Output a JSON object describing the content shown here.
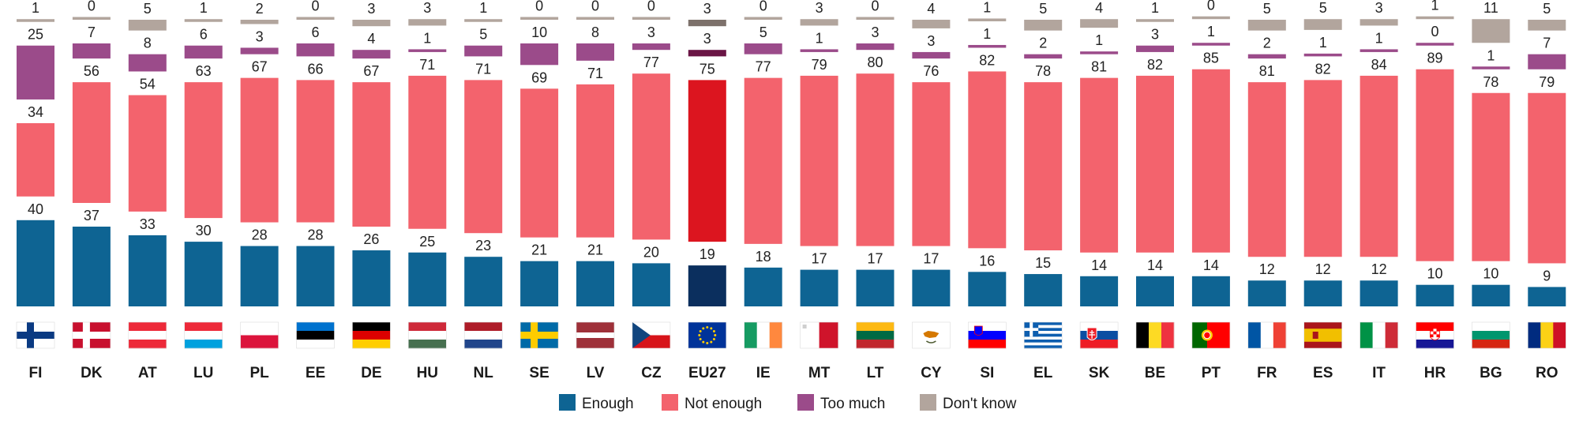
{
  "chart_data": {
    "type": "bar",
    "stacked": true,
    "categories": [
      "FI",
      "DK",
      "AT",
      "LU",
      "PL",
      "EE",
      "DE",
      "HU",
      "NL",
      "SE",
      "LV",
      "CZ",
      "EU27",
      "IE",
      "MT",
      "LT",
      "CY",
      "SI",
      "EL",
      "SK",
      "BE",
      "PT",
      "FR",
      "ES",
      "IT",
      "HR",
      "BG",
      "RO"
    ],
    "highlight_category": "EU27",
    "series": [
      {
        "name": "Enough",
        "color": "#0e6493",
        "highlight_color": "#0b2f5e",
        "values": [
          40,
          37,
          33,
          30,
          28,
          28,
          26,
          25,
          23,
          21,
          21,
          20,
          19,
          18,
          17,
          17,
          17,
          16,
          15,
          14,
          14,
          14,
          12,
          12,
          12,
          10,
          10,
          9
        ]
      },
      {
        "name": "Not enough",
        "color": "#f3636d",
        "highlight_color": "#dc151f",
        "values": [
          34,
          56,
          54,
          63,
          67,
          66,
          67,
          71,
          71,
          69,
          71,
          77,
          75,
          77,
          79,
          80,
          76,
          82,
          78,
          81,
          82,
          85,
          81,
          82,
          84,
          89,
          78,
          79
        ]
      },
      {
        "name": "Too much",
        "color": "#9b4b8a",
        "highlight_color": "#6a1545",
        "values": [
          25,
          7,
          8,
          6,
          3,
          6,
          4,
          1,
          5,
          10,
          8,
          3,
          3,
          5,
          1,
          3,
          3,
          1,
          2,
          1,
          3,
          1,
          2,
          1,
          1,
          0,
          1,
          7
        ]
      },
      {
        "name": "Don't know",
        "color": "#b2a59d",
        "highlight_color": "#7d716b",
        "values": [
          1,
          0,
          5,
          1,
          2,
          0,
          3,
          3,
          1,
          0,
          0,
          0,
          3,
          0,
          3,
          0,
          4,
          1,
          5,
          4,
          1,
          0,
          5,
          5,
          3,
          1,
          11,
          5
        ]
      }
    ],
    "legend": {
      "position": "bottom-center",
      "labels": [
        "Enough",
        "Not enough",
        "Too much",
        "Don't know"
      ]
    },
    "flags_shown": true,
    "ylim": [
      0,
      100
    ],
    "grid": false
  }
}
